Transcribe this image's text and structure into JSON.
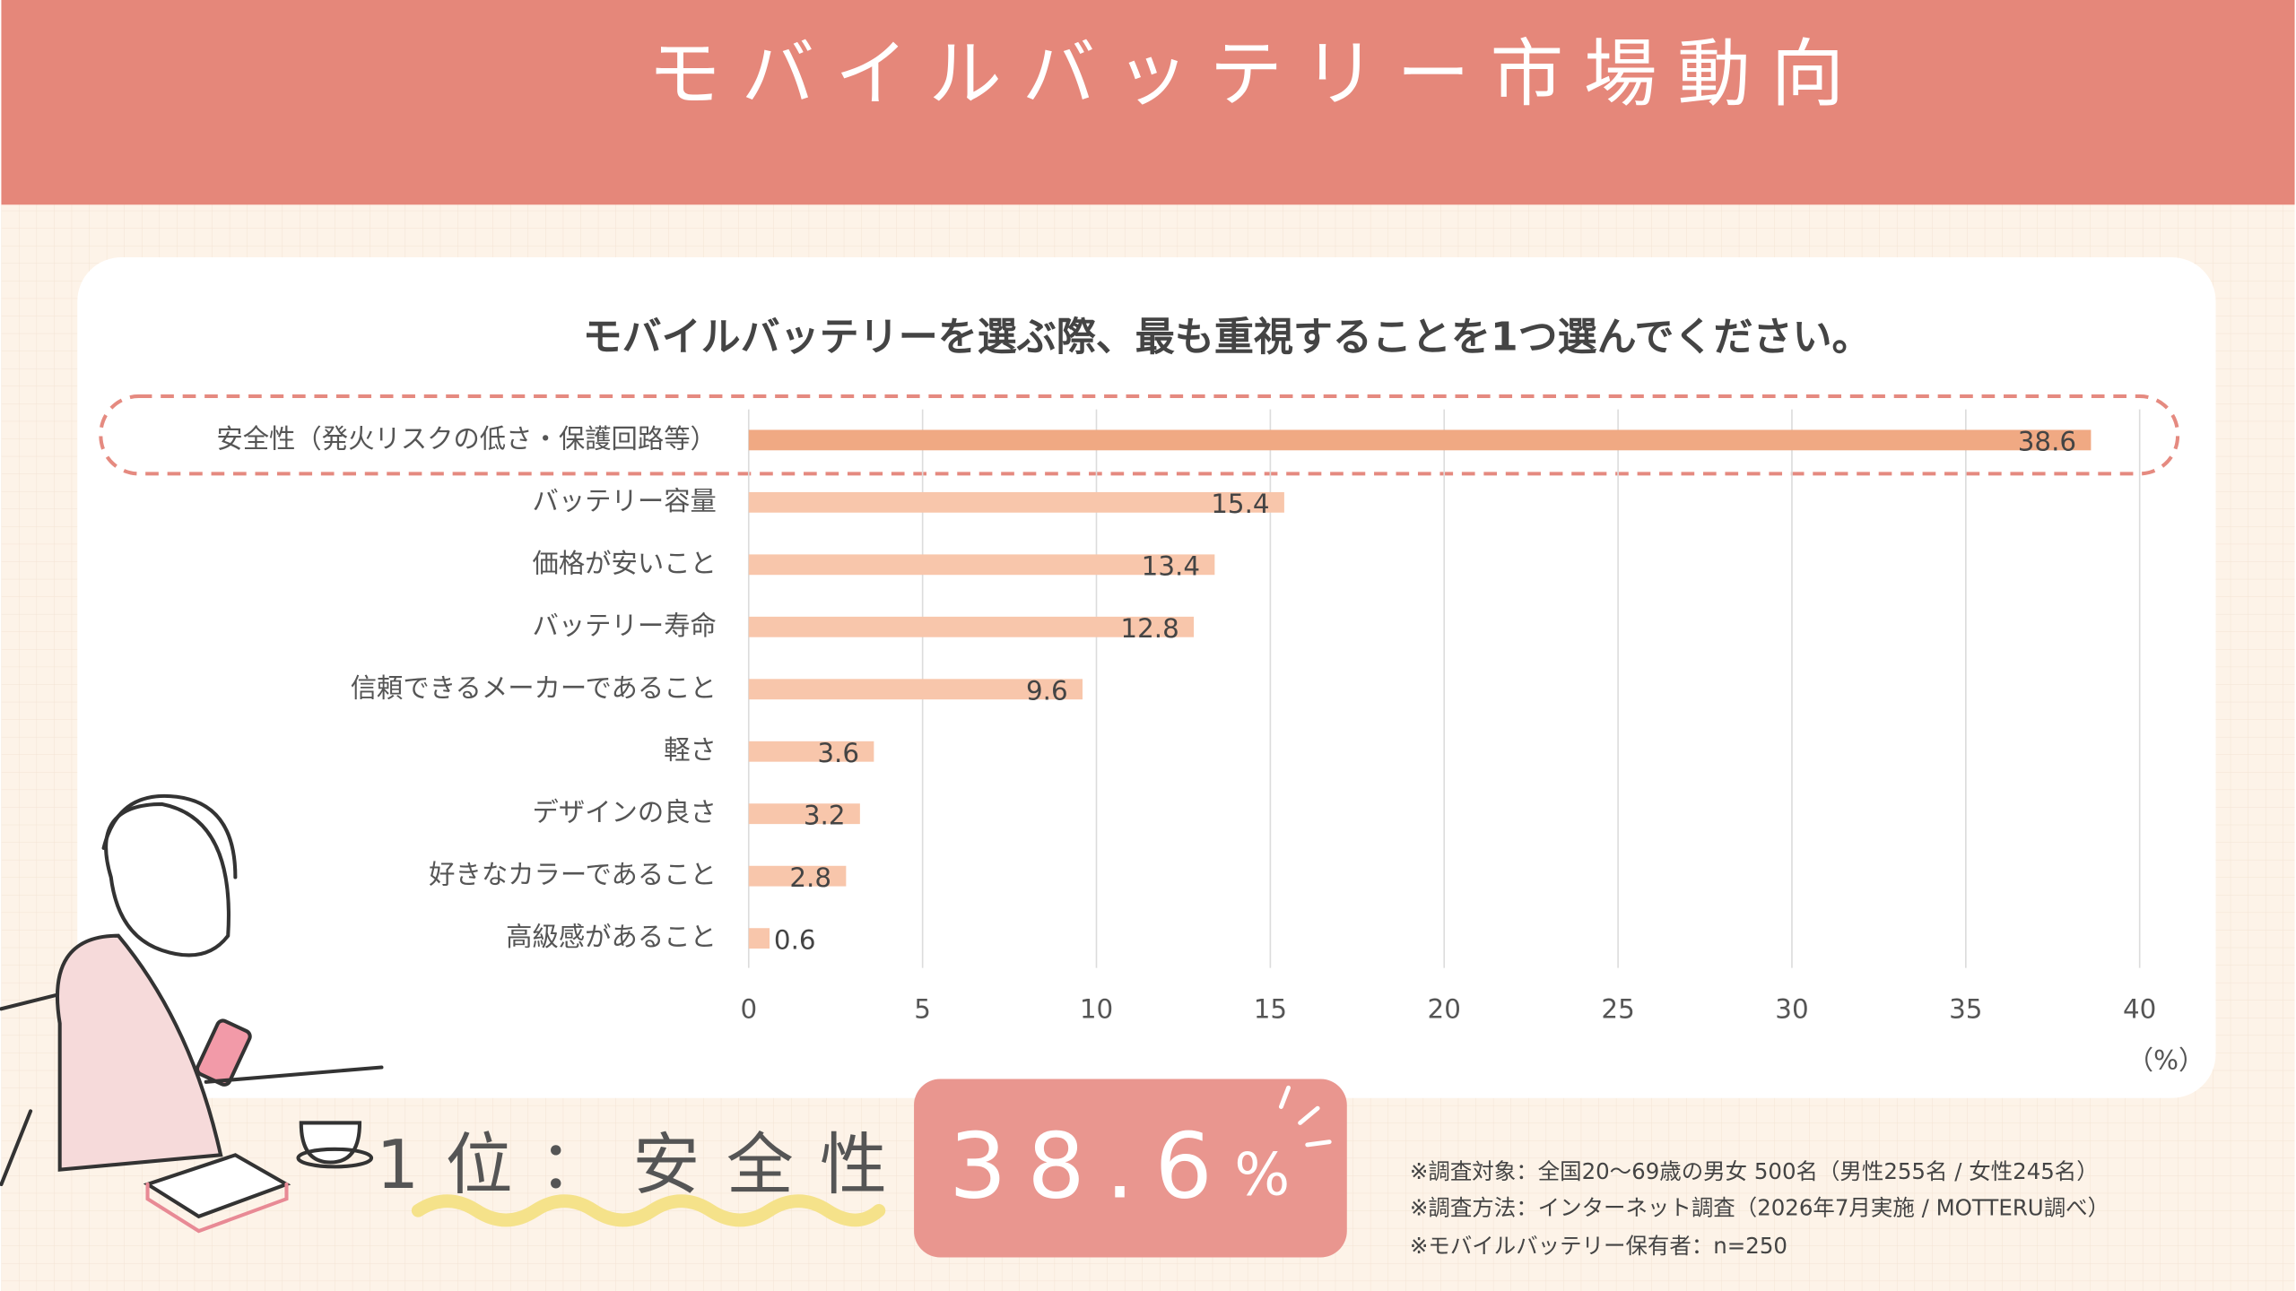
{
  "chart_data": {
    "type": "bar",
    "orientation": "horizontal",
    "header": "モバイルバッテリー市場動向",
    "title": "モバイルバッテリーを選ぶ際、最も重視することを1つ選んでください。",
    "categories": [
      "安全性（発火リスクの低さ・保護回路等）",
      "バッテリー容量",
      "価格が安いこと",
      "バッテリー寿命",
      "信頼できるメーカーであること",
      "軽さ",
      "デザインの良さ",
      "好きなカラーであること",
      "高級感があること"
    ],
    "values": [
      38.6,
      15.4,
      13.4,
      12.8,
      9.6,
      3.6,
      3.2,
      2.8,
      0.6
    ],
    "colors": [
      "#f0a983",
      "#f8c6ab",
      "#f8c6ab",
      "#f8c6ab",
      "#f8c6ab",
      "#f8c6ab",
      "#f8c6ab",
      "#f8c6ab",
      "#f8c6ab"
    ],
    "xlim": [
      0,
      40
    ],
    "xticks": [
      0,
      5,
      10,
      15,
      20,
      25,
      30,
      35,
      40
    ],
    "grid": true,
    "xlabel": "（%）",
    "highlight": {
      "label": "1位：安全性",
      "value": 38.6,
      "unit": "%"
    },
    "notes": [
      "※調査対象：全国20〜69歳の男女 500名（男性255名 / 女性245名）",
      "※調査方法：インターネット調査（2026年7月実施 / MOTTERU調べ）",
      "※モバイルバッテリー保有者：n=250"
    ]
  }
}
